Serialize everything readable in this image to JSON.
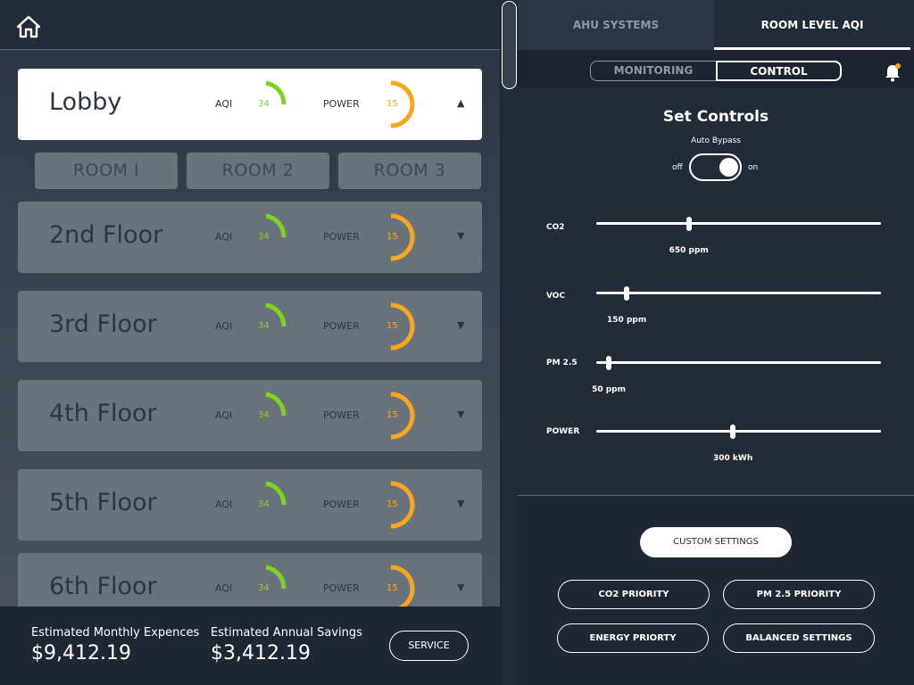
{
  "left_panel": {
    "home_icon": "home-icon",
    "gauge_labels": {
      "aqi": "AQI",
      "power": "POWER"
    },
    "floors": [
      {
        "name": "Lobby",
        "aqi": "34",
        "power": "15",
        "expanded": true
      },
      {
        "name": "2nd Floor",
        "aqi": "34",
        "power": "15",
        "expanded": false
      },
      {
        "name": "3rd Floor",
        "aqi": "34",
        "power": "15",
        "expanded": false
      },
      {
        "name": "4th Floor",
        "aqi": "34",
        "power": "15",
        "expanded": false
      },
      {
        "name": "5th Floor",
        "aqi": "34",
        "power": "15",
        "expanded": false
      },
      {
        "name": "6th Floor",
        "aqi": "34",
        "power": "15",
        "expanded": false
      }
    ],
    "caret_up": "▲",
    "caret_down": "▼",
    "rooms": [
      "ROOM I",
      "ROOM 2",
      "ROOM 3"
    ],
    "footer": {
      "monthly_label": "Estimated Monthly Expences",
      "monthly_value": "$9,412.19",
      "savings_label": "Estimated Annual Savings",
      "savings_value": "$3,412.19",
      "service_label": "SERVICE"
    },
    "colors": {
      "aqi": "#7ed321",
      "power": "#f5a623"
    }
  },
  "right_panel": {
    "tabs": [
      "AHU SYSTEMS",
      "ROOM LEVEL AQI"
    ],
    "active_tab": "ROOM LEVEL AQI",
    "subtabs": [
      "MONITORING",
      "CONTROL"
    ],
    "active_subtab": "CONTROL",
    "bell_icon": "bell-icon",
    "title": "Set Controls",
    "auto_bypass": {
      "label": "Auto Bypass",
      "off": "off",
      "on": "on",
      "state": "on"
    },
    "sliders": [
      {
        "label": "CO2",
        "value": "650 ppm",
        "fraction": 0.325
      },
      {
        "label": "VOC",
        "value": "150 ppm",
        "fraction": 0.107
      },
      {
        "label": "PM 2.5",
        "value": "50 ppm",
        "fraction": 0.044
      },
      {
        "label": "POWER",
        "value": "300 kWh",
        "fraction": 0.48
      }
    ],
    "custom_settings": "CUSTOM SETTINGS",
    "priorities": [
      "CO2 PRIORITY",
      "PM 2.5 PRIORITY",
      "ENERGY PRIORTY",
      "BALANCED SETTINGS"
    ]
  }
}
